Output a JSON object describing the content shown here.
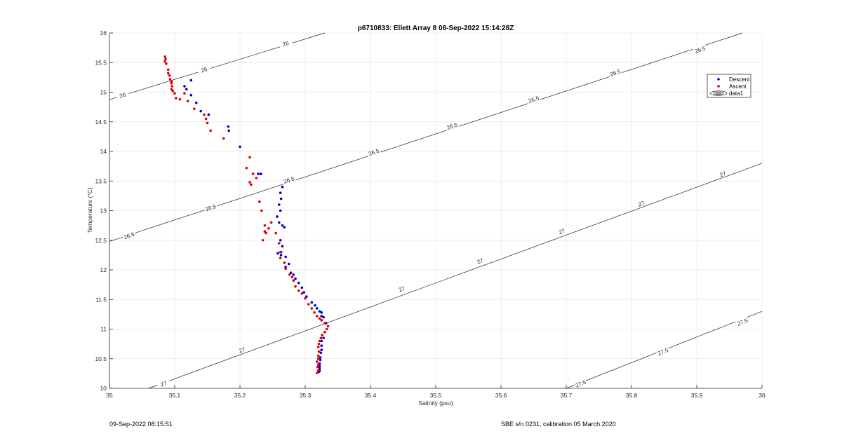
{
  "chart_data": {
    "type": "scatter",
    "title": "p6710833: Ellett Array 8 08-Sep-2022 15:14:28Z",
    "xlabel": "Salinity (psu)",
    "ylabel": "Temperature (°C)",
    "xlim": [
      35,
      36
    ],
    "ylim": [
      10,
      16
    ],
    "xticks": [
      35,
      35.1,
      35.2,
      35.3,
      35.4,
      35.5,
      35.6,
      35.7,
      35.8,
      35.9,
      36
    ],
    "xtick_labels": [
      "35",
      "35.1",
      "35.2",
      "35.3",
      "35.4",
      "35.5",
      "35.6",
      "35.7",
      "35.8",
      "35.9",
      "36"
    ],
    "yticks": [
      10,
      10.5,
      11,
      11.5,
      12,
      12.5,
      13,
      13.5,
      14,
      14.5,
      15,
      15.5,
      16
    ],
    "ytick_labels": [
      "10",
      "10.5",
      "11",
      "11.5",
      "12",
      "12.5",
      "13",
      "13.5",
      "14",
      "14.5",
      "15",
      "15.5",
      "16"
    ],
    "grid": true,
    "legend_position": "top-right",
    "legend": [
      {
        "label": "Descent",
        "kind": "marker",
        "color": "#0000cc"
      },
      {
        "label": "Ascent",
        "kind": "marker",
        "color": "#dd0000"
      },
      {
        "label": "data1",
        "kind": "contour",
        "color": "#000000"
      }
    ],
    "series": [
      {
        "name": "Descent",
        "color": "#0000cc",
        "x": [
          35.125,
          35.115,
          35.118,
          35.125,
          35.133,
          35.14,
          35.152,
          35.182,
          35.183,
          35.2,
          35.228,
          35.232,
          35.265,
          35.262,
          35.263,
          35.26,
          35.262,
          35.257,
          35.26,
          35.265,
          35.268,
          35.262,
          35.265,
          35.263,
          35.258,
          35.263,
          35.27,
          35.275,
          35.27,
          35.278,
          35.282,
          35.285,
          35.29,
          35.295,
          35.298,
          35.302,
          35.31,
          35.315,
          35.318,
          35.322,
          35.325,
          35.325,
          35.328,
          35.325,
          35.332,
          35.33,
          35.328,
          35.325,
          35.325,
          35.325,
          35.324,
          35.323,
          35.323,
          35.322,
          35.322,
          35.322,
          35.322,
          35.321
        ],
        "y": [
          15.2,
          15.1,
          15.05,
          14.95,
          14.82,
          14.68,
          14.62,
          14.42,
          14.35,
          14.08,
          13.62,
          13.62,
          13.4,
          13.3,
          13.2,
          13.1,
          13.0,
          12.9,
          12.8,
          12.75,
          12.72,
          12.5,
          12.4,
          12.3,
          12.28,
          12.25,
          12.22,
          12.1,
          12.05,
          11.95,
          11.92,
          11.85,
          11.78,
          11.7,
          11.62,
          11.55,
          11.45,
          11.4,
          11.35,
          11.3,
          11.28,
          11.22,
          11.2,
          11.15,
          11.1,
          10.95,
          10.85,
          10.8,
          10.72,
          10.65,
          10.6,
          10.52,
          10.48,
          10.42,
          10.38,
          10.34,
          10.3,
          10.28
        ]
      },
      {
        "name": "Ascent",
        "color": "#dd0000",
        "x": [
          35.085,
          35.086,
          35.085,
          35.087,
          35.09,
          35.09,
          35.092,
          35.093,
          35.095,
          35.095,
          35.096,
          35.095,
          35.097,
          35.1,
          35.102,
          35.108,
          35.115,
          35.12,
          35.13,
          35.145,
          35.148,
          35.15,
          35.155,
          35.175,
          35.215,
          35.21,
          35.22,
          35.225,
          35.215,
          35.217,
          35.23,
          35.233,
          35.238,
          35.24,
          35.235,
          35.238,
          35.244,
          35.248,
          35.255,
          35.26,
          35.262,
          35.262,
          35.268,
          35.27,
          35.276,
          35.28,
          35.282,
          35.285,
          35.29,
          35.295,
          35.3,
          35.305,
          35.31,
          35.314,
          35.318,
          35.322,
          35.325,
          35.33,
          35.335,
          35.333,
          35.33,
          35.326,
          35.324,
          35.322,
          35.321,
          35.32,
          35.321,
          35.32,
          35.32,
          35.318,
          35.32,
          35.319,
          35.32,
          35.318
        ],
        "y": [
          15.6,
          15.56,
          15.52,
          15.48,
          15.38,
          15.32,
          15.28,
          15.22,
          15.18,
          15.15,
          15.1,
          15.05,
          15.02,
          14.98,
          14.9,
          14.88,
          14.98,
          14.85,
          14.72,
          14.62,
          14.55,
          14.48,
          14.35,
          14.22,
          13.9,
          13.72,
          13.62,
          13.55,
          13.48,
          13.44,
          13.15,
          13.0,
          12.75,
          12.62,
          12.5,
          12.65,
          12.7,
          12.8,
          12.62,
          12.45,
          12.3,
          12.2,
          12.12,
          12.02,
          11.92,
          11.88,
          11.82,
          11.72,
          11.65,
          11.6,
          11.52,
          11.42,
          11.35,
          11.28,
          11.22,
          11.18,
          11.15,
          11.1,
          11.05,
          11.0,
          10.95,
          10.9,
          10.85,
          10.8,
          10.75,
          10.7,
          10.62,
          10.55,
          10.5,
          10.45,
          10.4,
          10.36,
          10.3,
          10.26
        ]
      }
    ],
    "contours": [
      {
        "level": "26",
        "x": [
          35,
          35.33
        ],
        "y": [
          14.875,
          16
        ]
      },
      {
        "level": "26.5",
        "x": [
          35,
          35.97
        ],
        "y": [
          12.48,
          16
        ]
      },
      {
        "level": "27",
        "x": [
          35.06,
          36
        ],
        "y": [
          10,
          13.8
        ]
      },
      {
        "level": "27.5",
        "x": [
          35.7,
          36
        ],
        "y": [
          10,
          11.3
        ]
      }
    ],
    "contour_labels": [
      {
        "text": "26",
        "x": 35.02,
        "y": 14.95
      },
      {
        "text": "26",
        "x": 35.145,
        "y": 15.38
      },
      {
        "text": "26",
        "x": 35.27,
        "y": 15.82
      },
      {
        "text": "26.5",
        "x": 35.03,
        "y": 12.58
      },
      {
        "text": "26.5",
        "x": 35.155,
        "y": 13.05
      },
      {
        "text": "26.5",
        "x": 35.275,
        "y": 13.52
      },
      {
        "text": "26.5",
        "x": 35.405,
        "y": 13.99
      },
      {
        "text": "26.5",
        "x": 35.525,
        "y": 14.43
      },
      {
        "text": "26.5",
        "x": 35.65,
        "y": 14.88
      },
      {
        "text": "26.5",
        "x": 35.775,
        "y": 15.33
      },
      {
        "text": "26.5",
        "x": 35.905,
        "y": 15.72
      },
      {
        "text": "27",
        "x": 35.083,
        "y": 10.08
      },
      {
        "text": "27",
        "x": 35.203,
        "y": 10.65
      },
      {
        "text": "27",
        "x": 35.448,
        "y": 11.68
      },
      {
        "text": "27",
        "x": 35.568,
        "y": 12.15
      },
      {
        "text": "27",
        "x": 35.693,
        "y": 12.65
      },
      {
        "text": "27",
        "x": 35.815,
        "y": 13.12
      },
      {
        "text": "27",
        "x": 35.94,
        "y": 13.62
      },
      {
        "text": "27.5",
        "x": 35.722,
        "y": 10.08
      },
      {
        "text": "27.5",
        "x": 35.848,
        "y": 10.62
      },
      {
        "text": "27.5",
        "x": 35.97,
        "y": 11.12
      }
    ]
  },
  "footer": {
    "left": "09-Sep-2022 08:15:51",
    "right": "SBE s/n 0231, calibration 05 March 2020"
  }
}
